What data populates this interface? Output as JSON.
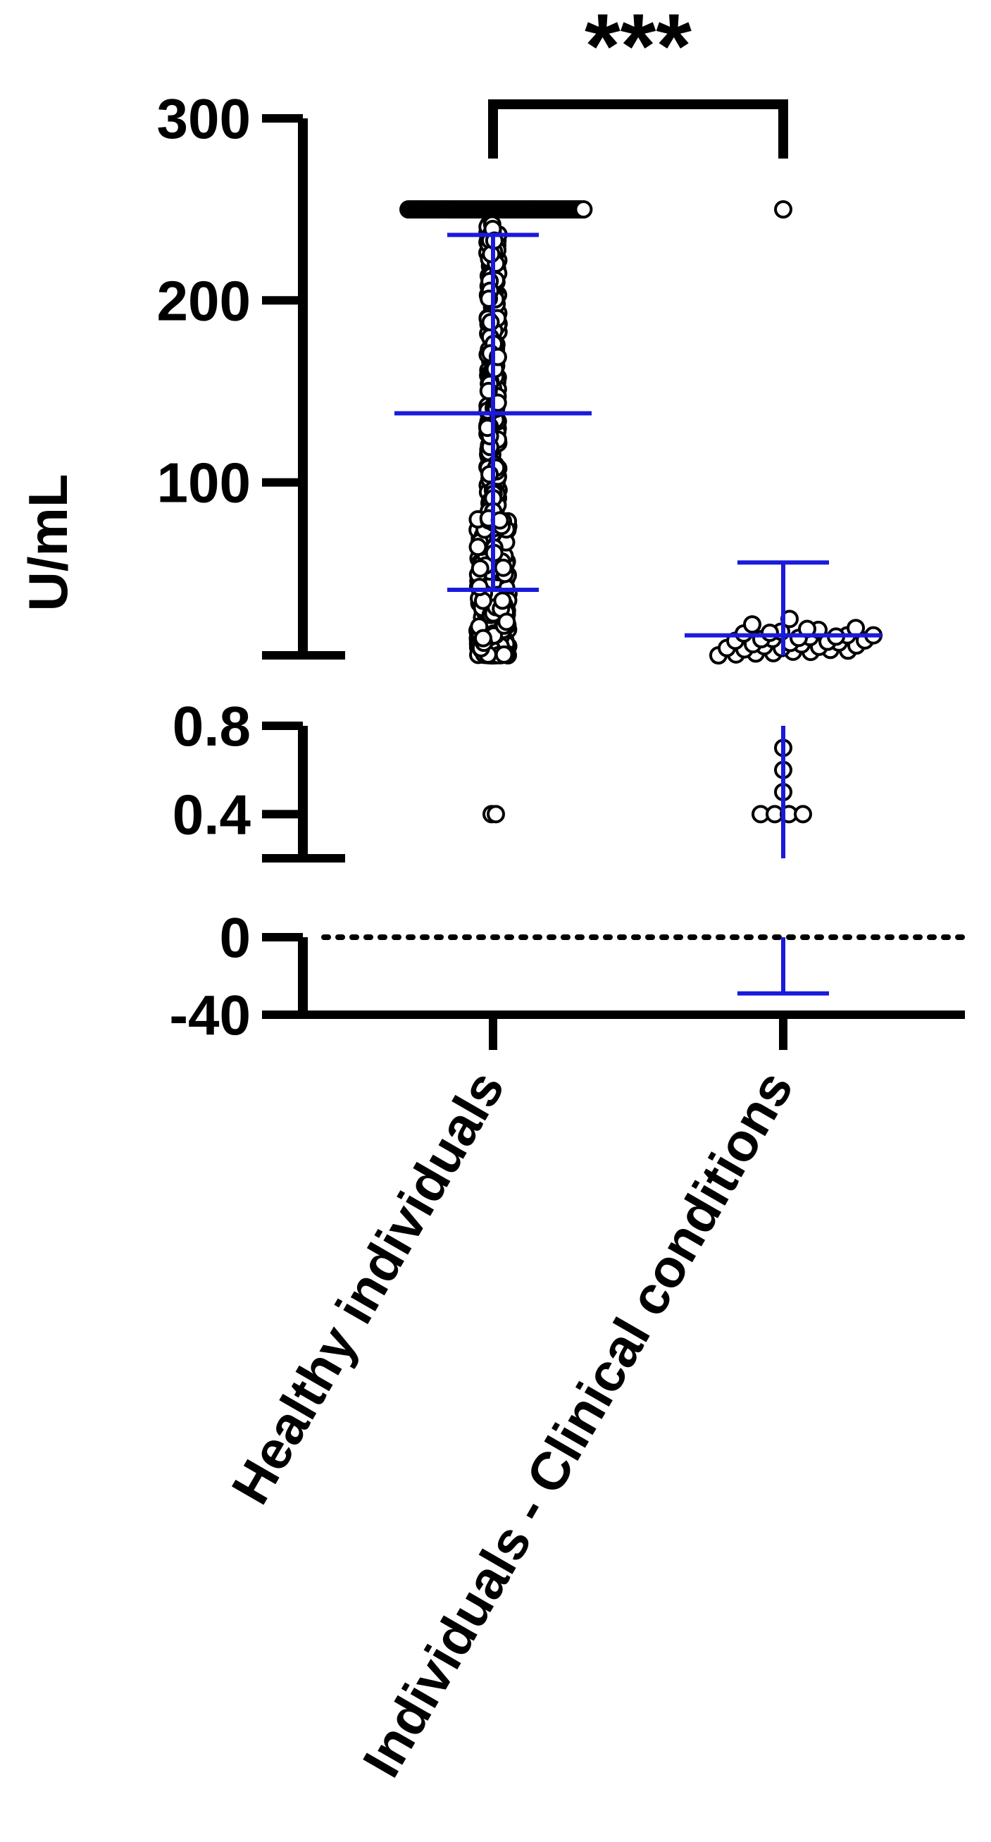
{
  "chart_data": {
    "type": "scatter",
    "title": "",
    "ylabel": "U/mL",
    "xlabel": "",
    "categories": [
      "Healthy individuals",
      "Individuals - Clinical conditions"
    ],
    "y_axis_segments": [
      {
        "range": [
          5,
          300
        ],
        "ticks": [
          100,
          200,
          300
        ]
      },
      {
        "range": [
          0.2,
          0.8
        ],
        "ticks": [
          0.4,
          0.8
        ]
      },
      {
        "range": [
          -40,
          0
        ],
        "ticks": [
          -40,
          0
        ]
      }
    ],
    "reference_line": {
      "y": 0,
      "style": "dotted"
    },
    "significance": {
      "label": "***",
      "between": [
        "Healthy individuals",
        "Individuals - Clinical conditions"
      ]
    },
    "series": [
      {
        "category": "Healthy individuals",
        "mean": 138,
        "sd_upper": 236,
        "sd_lower": 41,
        "cap_at": 250,
        "low_values": [
          0.4
        ],
        "note_points": "dense column of points from ~5 to 250; many values at the 250 cap"
      },
      {
        "category": "Individuals - Clinical conditions",
        "mean": 16,
        "sd_upper": 56,
        "sd_lower": -29,
        "outlier": 250,
        "values_main": [
          5,
          6,
          7,
          8,
          9,
          10,
          11,
          12,
          13,
          14,
          15,
          16,
          17,
          18,
          19,
          20,
          22,
          25
        ],
        "low_values": [
          0.4,
          0.4,
          0.4,
          0.4,
          0.5,
          0.6,
          0.7
        ]
      }
    ]
  },
  "colors": {
    "axis": "#000000",
    "error_bar": "#1a1adc",
    "point_fill": "#ffffff",
    "point_stroke": "#000000"
  }
}
